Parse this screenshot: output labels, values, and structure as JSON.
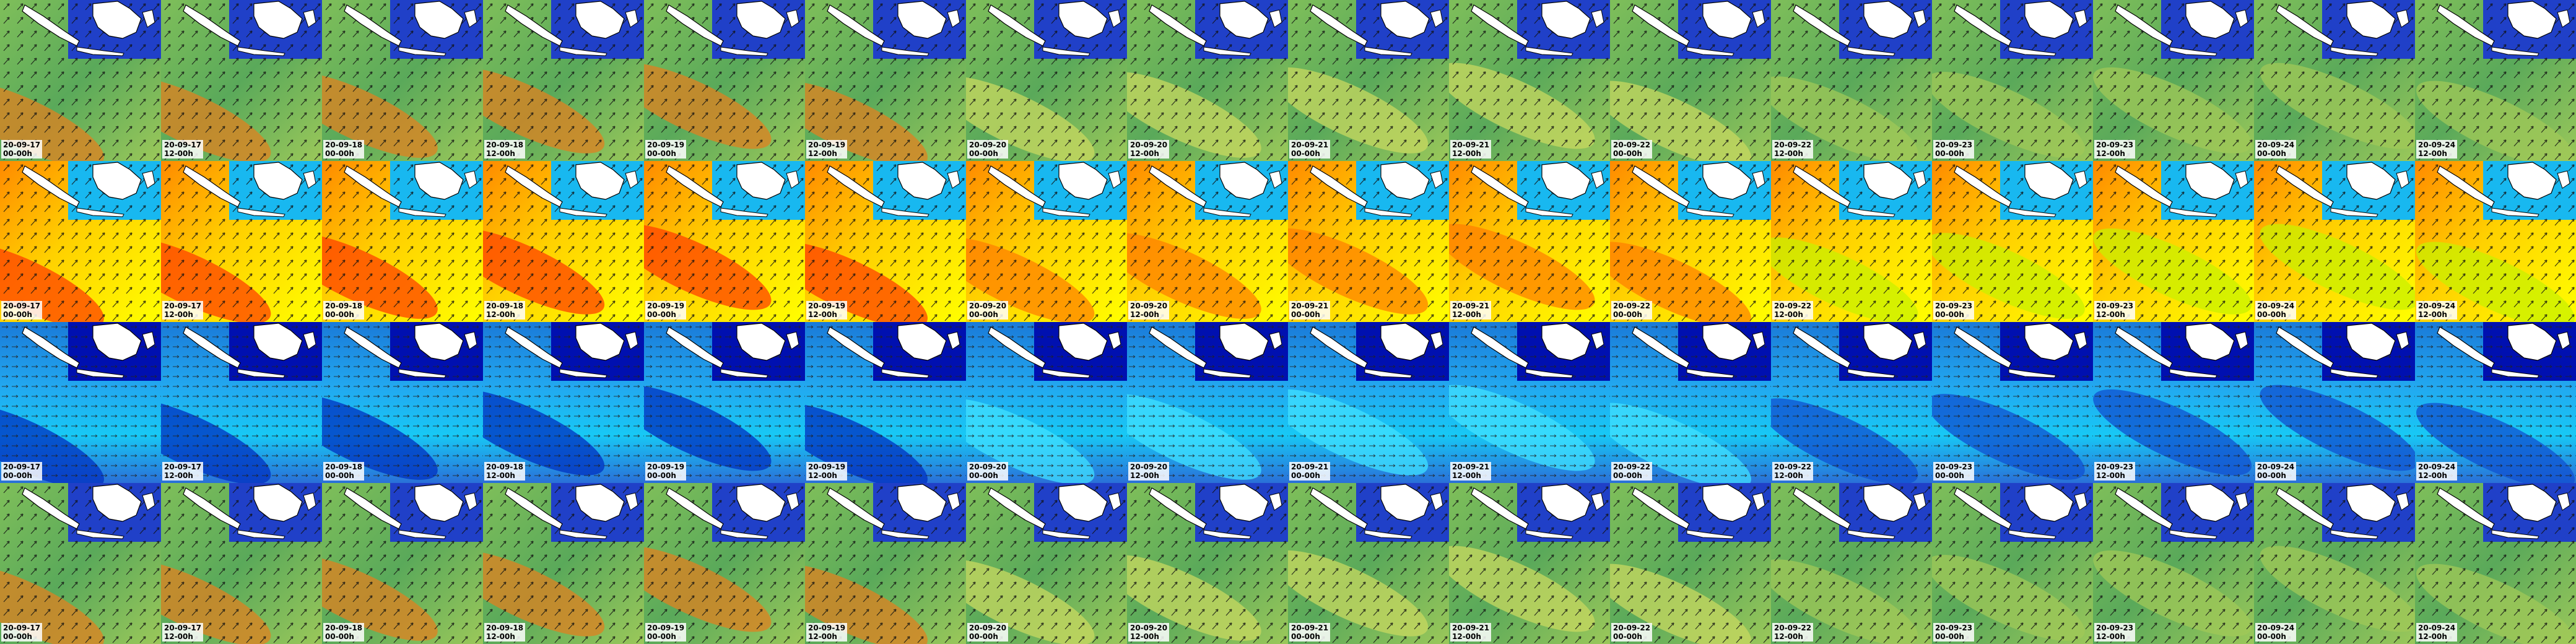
{
  "tiles": [
    {
      "date": "20-09-17",
      "time": "00-00h"
    },
    {
      "date": "20-09-17",
      "time": "12-00h"
    },
    {
      "date": "20-09-18",
      "time": "00-00h"
    },
    {
      "date": "20-09-18",
      "time": "12-00h"
    },
    {
      "date": "20-09-19",
      "time": "00-00h"
    },
    {
      "date": "20-09-19",
      "time": "12-00h"
    },
    {
      "date": "20-09-20",
      "time": "00-00h"
    },
    {
      "date": "20-09-20",
      "time": "12-00h"
    },
    {
      "date": "20-09-21",
      "time": "00-00h"
    },
    {
      "date": "20-09-21",
      "time": "12-00h"
    },
    {
      "date": "20-09-22",
      "time": "00-00h"
    },
    {
      "date": "20-09-22",
      "time": "12-00h"
    },
    {
      "date": "20-09-23",
      "time": "00-00h"
    },
    {
      "date": "20-09-23",
      "time": "12-00h"
    },
    {
      "date": "20-09-24",
      "time": "00-00h"
    },
    {
      "date": "20-09-24",
      "time": "12-00h"
    }
  ]
}
